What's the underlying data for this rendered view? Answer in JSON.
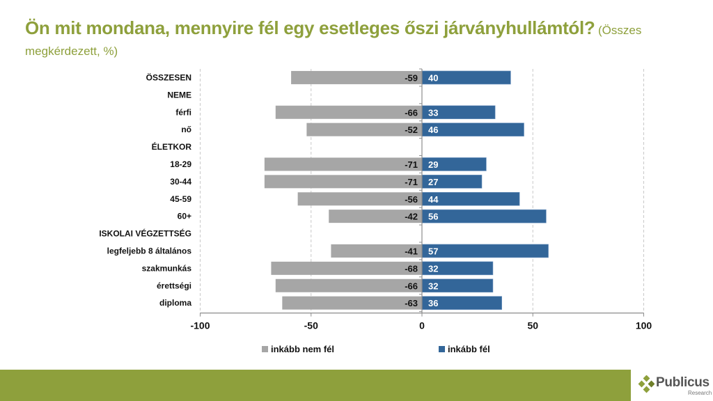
{
  "title": {
    "main": "Ön mit mondana, mennyire fél egy esetleges őszi járványhullámtól?",
    "sub": "(Összes megkérdezett, %)"
  },
  "chart_data": {
    "type": "bar",
    "orientation": "horizontal-diverging",
    "title": "Ön mit mondana, mennyire fél egy esetleges őszi járványhullámtól?",
    "subtitle": "(Összes megkérdezett, %)",
    "xlim": [
      -100,
      100
    ],
    "xticks": [
      "-100",
      "-50",
      "0",
      "50",
      "100"
    ],
    "xtick_values": [
      -100,
      -50,
      0,
      50,
      100
    ],
    "grid": "vertical dashed",
    "legend_position": "bottom",
    "categories": [
      "ÖSSZESEN",
      "NEME",
      "férfi",
      "nő",
      "ÉLETKOR",
      "18-29",
      "30-44",
      "45-59",
      "60+",
      "ISKOLAI VÉGZETTSÉG",
      "legfeljebb 8 általános",
      "szakmunkás",
      "érettségi",
      "diploma"
    ],
    "series": [
      {
        "name": "inkább nem fél",
        "color": "#a6a6a6",
        "values": [
          -59,
          null,
          -66,
          -52,
          null,
          -71,
          -71,
          -56,
          -42,
          null,
          -41,
          -68,
          -66,
          -63
        ]
      },
      {
        "name": "inkább fél",
        "color": "#336699",
        "values": [
          40,
          null,
          33,
          46,
          null,
          29,
          27,
          44,
          56,
          null,
          57,
          32,
          32,
          36
        ]
      }
    ]
  },
  "footer": {
    "brand": "Publicus",
    "brand_sub": "Research",
    "accent": "#8ea03c"
  }
}
